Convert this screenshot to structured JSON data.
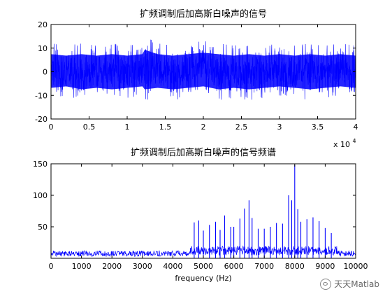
{
  "chart_data": [
    {
      "type": "line",
      "title": "扩频调制后加高斯白噪声的信号",
      "xlabel": "",
      "ylabel": "",
      "xlim": [
        0,
        40000
      ],
      "ylim": [
        -20,
        20
      ],
      "xticks": [
        0,
        0.5,
        1,
        1.5,
        2,
        2.5,
        3,
        3.5,
        4
      ],
      "xtick_labels": [
        "0",
        "0.5",
        "1",
        "1.5",
        "2",
        "2.5",
        "3",
        "3.5",
        "4"
      ],
      "yticks": [
        -20,
        -10,
        0,
        10,
        20
      ],
      "ytick_labels": [
        "-20",
        "-10",
        "0",
        "10",
        "20"
      ],
      "x_scale_label": "x 10",
      "x_scale_exponent": "4",
      "grid": false,
      "color": "#0000ff",
      "series": [
        {
          "x": [
            0,
            2000,
            4000,
            6000,
            8000,
            10000,
            12000,
            12300,
            14000,
            16000,
            18000,
            20000,
            22000,
            24000,
            26000,
            28000,
            30000,
            32000,
            34000,
            36000,
            38000,
            40000
          ],
          "upper": [
            12,
            11,
            12,
            11,
            12,
            11,
            12,
            15,
            12,
            11,
            12,
            13,
            12,
            11,
            12,
            11,
            12,
            11,
            12,
            11,
            12,
            11
          ],
          "lower": [
            -11,
            -10,
            -12,
            -11,
            -12,
            -11,
            -10,
            -12,
            -11,
            -12,
            -11,
            -10,
            -12,
            -11,
            -12,
            -11,
            -10,
            -11,
            -12,
            -11,
            -10,
            -11
          ]
        }
      ]
    },
    {
      "type": "line",
      "title": "扩频调制后加高斯白噪声的信号频谱",
      "xlabel": "frequency (Hz)",
      "ylabel": "",
      "xlim": [
        0,
        10000
      ],
      "ylim": [
        0,
        150
      ],
      "xticks": [
        0,
        1000,
        2000,
        3000,
        4000,
        5000,
        6000,
        7000,
        8000,
        9000,
        10000
      ],
      "xtick_labels": [
        "0",
        "1000",
        "2000",
        "3000",
        "4000",
        "5000",
        "6000",
        "7000",
        "8000",
        "9000",
        "10000"
      ],
      "yticks": [
        50,
        100,
        150
      ],
      "ytick_labels": [
        "50",
        "100",
        "150"
      ],
      "grid": false,
      "color": "#0000ff",
      "series": [
        {
          "baseline_max": 12,
          "peaks": {
            "x": [
              4700,
              4850,
              5000,
              5200,
              5400,
              5550,
              5700,
              5900,
              6000,
              6200,
              6350,
              6500,
              6600,
              6800,
              7000,
              7200,
              7400,
              7600,
              7800,
              7900,
              8000,
              8100,
              8200,
              8400,
              8600,
              8800,
              9000,
              9200
            ],
            "y": [
              57,
              60,
              44,
              53,
              58,
              45,
              68,
              50,
              50,
              63,
              79,
              92,
              64,
              47,
              47,
              50,
              56,
              55,
              100,
              92,
              148,
              78,
              58,
              62,
              65,
              59,
              48,
              40
            ]
          }
        }
      ]
    }
  ],
  "watermark": {
    "text": "天天Matlab",
    "icon": "wechat-icon"
  }
}
